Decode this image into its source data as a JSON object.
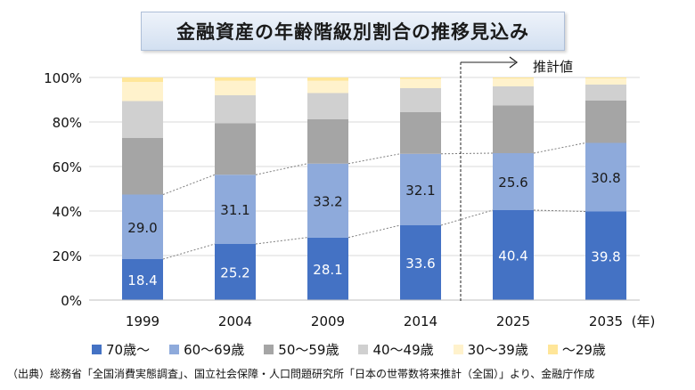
{
  "title": "金融資産の年齢階級別割合の推移見込み",
  "source": "（出典）総務省「全国消費実態調査」、国立社会保障・人口問題研究所「日本の世帯数将来推計（全国）」より、金融庁作成",
  "projection_label": "推計値",
  "x_unit": "(年)",
  "chart_data": {
    "type": "bar",
    "stacked": true,
    "categories": [
      "1999",
      "2004",
      "2009",
      "2014",
      "2025",
      "2035"
    ],
    "ylim": [
      0,
      100
    ],
    "yticks": [
      "0%",
      "20%",
      "40%",
      "60%",
      "80%",
      "100%"
    ],
    "grid": true,
    "legend_position": "bottom",
    "series": [
      {
        "name": "70歳～",
        "color": "#4472c4",
        "label_color": "#ffffff",
        "values": [
          18.4,
          25.2,
          28.1,
          33.6,
          40.4,
          39.8
        ],
        "labels": [
          "18.4",
          "25.2",
          "28.1",
          "33.6",
          "40.4",
          "39.8"
        ]
      },
      {
        "name": "60～69歳",
        "color": "#8eaadb",
        "label_color": "#1a1a1a",
        "values": [
          29.0,
          31.1,
          33.2,
          32.1,
          25.6,
          30.8
        ],
        "labels": [
          "29.0",
          "31.1",
          "33.2",
          "32.1",
          "25.6",
          "30.8"
        ]
      },
      {
        "name": "50～59歳",
        "color": "#a5a5a5",
        "label_color": "#1a1a1a",
        "values": [
          25.5,
          23.2,
          19.9,
          18.8,
          21.5,
          19.0
        ],
        "labels": []
      },
      {
        "name": "40～49歳",
        "color": "#d0d0d0",
        "label_color": "#1a1a1a",
        "values": [
          16.5,
          12.5,
          11.8,
          10.7,
          8.5,
          7.2
        ],
        "labels": []
      },
      {
        "name": "30～39歳",
        "color": "#fff2cc",
        "label_color": "#1a1a1a",
        "values": [
          8.6,
          6.5,
          5.5,
          4.2,
          3.5,
          2.8
        ],
        "labels": []
      },
      {
        "name": "～29歳",
        "color": "#ffe699",
        "label_color": "#1a1a1a",
        "values": [
          2.0,
          1.5,
          1.5,
          0.6,
          0.5,
          0.4
        ],
        "labels": []
      }
    ]
  }
}
